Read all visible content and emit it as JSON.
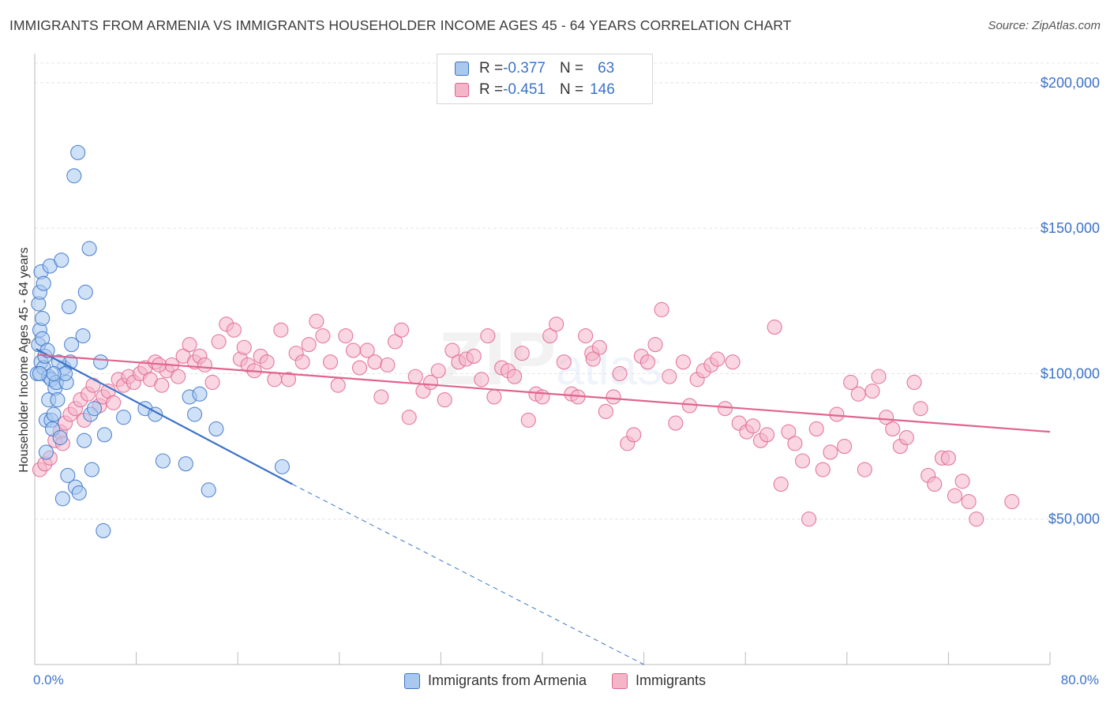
{
  "header": {
    "title": "IMMIGRANTS FROM ARMENIA VS IMMIGRANTS HOUSEHOLDER INCOME AGES 45 - 64 YEARS CORRELATION CHART",
    "source": "Source: ZipAtlas.com"
  },
  "colors": {
    "blue": "#3c73c8",
    "blue_fill": "#a8c8f0",
    "pink": "#e0648f",
    "pink_fill": "#f4b5c9",
    "grid": "#e4e4e4"
  },
  "legend": {
    "rows": [
      {
        "r_label": "R = ",
        "r_value": "-0.377",
        "n_label": "N = ",
        "n_value": "63"
      },
      {
        "r_label": "R = ",
        "r_value": "-0.451",
        "n_label": "N = ",
        "n_value": "146"
      }
    ]
  },
  "chart_data": {
    "type": "scatter",
    "title": "IMMIGRANTS FROM ARMENIA VS IMMIGRANTS HOUSEHOLDER INCOME AGES 45 - 64 YEARS CORRELATION CHART",
    "xlabel": "",
    "ylabel": "Householder Income Ages 45 - 64 years",
    "xlim": [
      0,
      80
    ],
    "ylim": [
      0,
      210000
    ],
    "x_tick_labels": [
      "0.0%",
      "80.0%"
    ],
    "y_ticks": [
      {
        "value": 50000,
        "label": "$50,000"
      },
      {
        "value": 100000,
        "label": "$100,000"
      },
      {
        "value": 150000,
        "label": "$150,000"
      },
      {
        "value": 200000,
        "label": "$200,000"
      }
    ],
    "grid": true,
    "legend_position": "top-center",
    "series": [
      {
        "name": "Immigrants from Armenia",
        "color": "#3c73c8",
        "r": -0.377,
        "n": 63,
        "trend": {
          "x0": 0.1,
          "y0": 108500,
          "x1": 20.3,
          "y1": 62000,
          "dashed_to_x": 48.0,
          "dashed_to_y": -2000
        },
        "points": [
          [
            0.2,
            100000
          ],
          [
            0.3,
            124000
          ],
          [
            0.3,
            110000
          ],
          [
            0.4,
            128000
          ],
          [
            0.4,
            115000
          ],
          [
            0.5,
            104000
          ],
          [
            0.5,
            135000
          ],
          [
            0.6,
            112000
          ],
          [
            0.6,
            119000
          ],
          [
            0.7,
            102000
          ],
          [
            0.7,
            131000
          ],
          [
            0.8,
            106000
          ],
          [
            0.9,
            73000
          ],
          [
            0.9,
            84000
          ],
          [
            1.0,
            108000
          ],
          [
            1.1,
            91000
          ],
          [
            1.1,
            99000
          ],
          [
            1.2,
            137000
          ],
          [
            1.3,
            84000
          ],
          [
            1.3,
            98000
          ],
          [
            1.4,
            81000
          ],
          [
            1.5,
            86000
          ],
          [
            1.6,
            95000
          ],
          [
            1.7,
            97000
          ],
          [
            1.8,
            91000
          ],
          [
            2.0,
            78000
          ],
          [
            2.1,
            139000
          ],
          [
            2.2,
            57000
          ],
          [
            2.3,
            102000
          ],
          [
            2.5,
            97000
          ],
          [
            2.6,
            65000
          ],
          [
            2.7,
            123000
          ],
          [
            2.8,
            104000
          ],
          [
            2.9,
            110000
          ],
          [
            3.2,
            61000
          ],
          [
            3.5,
            59000
          ],
          [
            3.8,
            113000
          ],
          [
            3.9,
            77000
          ],
          [
            4.0,
            128000
          ],
          [
            4.3,
            143000
          ],
          [
            4.4,
            86000
          ],
          [
            4.5,
            67000
          ],
          [
            3.1,
            168000
          ],
          [
            3.4,
            176000
          ],
          [
            4.7,
            88000
          ],
          [
            5.2,
            104000
          ],
          [
            5.5,
            79000
          ],
          [
            5.4,
            46000
          ],
          [
            7.0,
            85000
          ],
          [
            8.7,
            88000
          ],
          [
            9.5,
            86000
          ],
          [
            10.1,
            70000
          ],
          [
            11.9,
            69000
          ],
          [
            12.2,
            92000
          ],
          [
            12.6,
            86000
          ],
          [
            13.0,
            93000
          ],
          [
            13.7,
            60000
          ],
          [
            14.3,
            81000
          ],
          [
            19.5,
            68000
          ],
          [
            1.9,
            104000
          ],
          [
            0.4,
            100000
          ],
          [
            2.4,
            100000
          ],
          [
            1.5,
            100000
          ]
        ]
      },
      {
        "name": "Immigrants",
        "color": "#e0648f",
        "r": -0.451,
        "n": 146,
        "trend": {
          "x0": 0.2,
          "y0": 106500,
          "x1": 80.0,
          "y1": 80000
        },
        "points": [
          [
            0.4,
            67000
          ],
          [
            0.8,
            69000
          ],
          [
            1.2,
            71000
          ],
          [
            1.6,
            77000
          ],
          [
            2.0,
            80000
          ],
          [
            2.4,
            83000
          ],
          [
            2.8,
            86000
          ],
          [
            3.2,
            88000
          ],
          [
            3.6,
            91000
          ],
          [
            3.9,
            84000
          ],
          [
            4.2,
            93000
          ],
          [
            4.6,
            96000
          ],
          [
            5.1,
            89000
          ],
          [
            5.4,
            92000
          ],
          [
            5.8,
            94000
          ],
          [
            6.2,
            90000
          ],
          [
            6.6,
            98000
          ],
          [
            7.0,
            96000
          ],
          [
            7.4,
            99000
          ],
          [
            7.8,
            97000
          ],
          [
            8.3,
            100000
          ],
          [
            8.7,
            102000
          ],
          [
            9.1,
            98000
          ],
          [
            9.5,
            104000
          ],
          [
            10.0,
            96000
          ],
          [
            10.4,
            101000
          ],
          [
            10.8,
            103000
          ],
          [
            11.3,
            99000
          ],
          [
            11.7,
            106000
          ],
          [
            12.2,
            110000
          ],
          [
            12.6,
            104000
          ],
          [
            13.0,
            106000
          ],
          [
            13.4,
            103000
          ],
          [
            14.0,
            97000
          ],
          [
            14.5,
            111000
          ],
          [
            15.1,
            117000
          ],
          [
            15.7,
            115000
          ],
          [
            16.2,
            105000
          ],
          [
            16.8,
            103000
          ],
          [
            17.3,
            101000
          ],
          [
            17.8,
            106000
          ],
          [
            18.3,
            104000
          ],
          [
            18.9,
            98000
          ],
          [
            19.4,
            115000
          ],
          [
            20.0,
            98000
          ],
          [
            20.6,
            107000
          ],
          [
            21.1,
            104000
          ],
          [
            21.6,
            110000
          ],
          [
            22.2,
            118000
          ],
          [
            22.7,
            113000
          ],
          [
            23.3,
            104000
          ],
          [
            23.9,
            96000
          ],
          [
            24.5,
            113000
          ],
          [
            25.1,
            108000
          ],
          [
            25.6,
            102000
          ],
          [
            26.2,
            108000
          ],
          [
            26.8,
            104000
          ],
          [
            27.3,
            92000
          ],
          [
            27.8,
            103000
          ],
          [
            28.4,
            111000
          ],
          [
            28.9,
            115000
          ],
          [
            29.5,
            85000
          ],
          [
            30.0,
            99000
          ],
          [
            30.6,
            94000
          ],
          [
            31.2,
            97000
          ],
          [
            31.8,
            101000
          ],
          [
            32.3,
            91000
          ],
          [
            32.9,
            108000
          ],
          [
            33.4,
            104000
          ],
          [
            34.0,
            105000
          ],
          [
            34.6,
            106000
          ],
          [
            35.2,
            98000
          ],
          [
            35.7,
            113000
          ],
          [
            36.2,
            92000
          ],
          [
            36.8,
            102000
          ],
          [
            37.3,
            101000
          ],
          [
            37.8,
            99000
          ],
          [
            38.4,
            107000
          ],
          [
            38.9,
            84000
          ],
          [
            39.5,
            93000
          ],
          [
            40.0,
            92000
          ],
          [
            40.6,
            113000
          ],
          [
            41.1,
            117000
          ],
          [
            41.7,
            104000
          ],
          [
            42.3,
            93000
          ],
          [
            42.8,
            92000
          ],
          [
            43.4,
            113000
          ],
          [
            43.9,
            107000
          ],
          [
            44.5,
            109000
          ],
          [
            45.0,
            87000
          ],
          [
            45.6,
            92000
          ],
          [
            46.1,
            100000
          ],
          [
            46.7,
            76000
          ],
          [
            47.2,
            79000
          ],
          [
            47.8,
            106000
          ],
          [
            48.3,
            104000
          ],
          [
            48.9,
            110000
          ],
          [
            49.4,
            122000
          ],
          [
            50.0,
            99000
          ],
          [
            50.5,
            83000
          ],
          [
            51.1,
            104000
          ],
          [
            51.6,
            89000
          ],
          [
            52.2,
            98000
          ],
          [
            52.7,
            101000
          ],
          [
            53.3,
            103000
          ],
          [
            53.8,
            105000
          ],
          [
            54.4,
            88000
          ],
          [
            55.0,
            104000
          ],
          [
            55.5,
            83000
          ],
          [
            56.1,
            80000
          ],
          [
            56.6,
            82000
          ],
          [
            57.2,
            77000
          ],
          [
            57.7,
            79000
          ],
          [
            58.3,
            116000
          ],
          [
            58.8,
            62000
          ],
          [
            59.4,
            80000
          ],
          [
            59.9,
            76000
          ],
          [
            60.5,
            70000
          ],
          [
            61.0,
            50000
          ],
          [
            61.6,
            81000
          ],
          [
            62.1,
            67000
          ],
          [
            62.7,
            73000
          ],
          [
            63.2,
            86000
          ],
          [
            63.8,
            75000
          ],
          [
            64.3,
            97000
          ],
          [
            64.9,
            93000
          ],
          [
            65.4,
            67000
          ],
          [
            66.0,
            94000
          ],
          [
            66.5,
            99000
          ],
          [
            67.1,
            85000
          ],
          [
            67.6,
            81000
          ],
          [
            68.2,
            75000
          ],
          [
            68.7,
            78000
          ],
          [
            69.3,
            97000
          ],
          [
            69.8,
            88000
          ],
          [
            70.4,
            65000
          ],
          [
            70.9,
            62000
          ],
          [
            71.5,
            71000
          ],
          [
            72.0,
            71000
          ],
          [
            72.5,
            58000
          ],
          [
            73.1,
            63000
          ],
          [
            73.6,
            56000
          ],
          [
            74.2,
            50000
          ],
          [
            77.0,
            56000
          ],
          [
            2.2,
            76000
          ],
          [
            9.8,
            103000
          ],
          [
            16.5,
            109000
          ],
          [
            44.0,
            105000
          ]
        ]
      }
    ]
  },
  "bottom_legend": {
    "items": [
      {
        "label": "Immigrants from Armenia"
      },
      {
        "label": "Immigrants"
      }
    ]
  }
}
